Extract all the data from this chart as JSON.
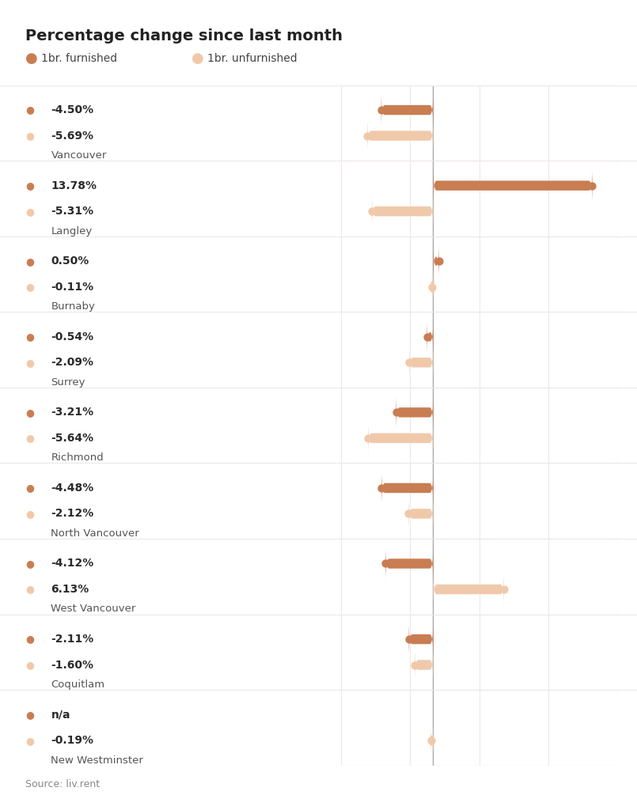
{
  "title": "Percentage change since last month",
  "legend": [
    {
      "label": "1br. furnished",
      "color": "#c97d52"
    },
    {
      "label": "1br. unfurnished",
      "color": "#f0c9aa"
    }
  ],
  "cities": [
    {
      "name": "Vancouver",
      "furnished": -4.5,
      "unfurnished": -5.69,
      "furnished_label": "-4.50%",
      "unfurnished_label": "-5.69%"
    },
    {
      "name": "Langley",
      "furnished": 13.78,
      "unfurnished": -5.31,
      "furnished_label": "13.78%",
      "unfurnished_label": "-5.31%"
    },
    {
      "name": "Burnaby",
      "furnished": 0.5,
      "unfurnished": -0.11,
      "furnished_label": "0.50%",
      "unfurnished_label": "-0.11%"
    },
    {
      "name": "Surrey",
      "furnished": -0.54,
      "unfurnished": -2.09,
      "furnished_label": "-0.54%",
      "unfurnished_label": "-2.09%"
    },
    {
      "name": "Richmond",
      "furnished": -3.21,
      "unfurnished": -5.64,
      "furnished_label": "-3.21%",
      "unfurnished_label": "-5.64%"
    },
    {
      "name": "North Vancouver",
      "furnished": -4.48,
      "unfurnished": -2.12,
      "furnished_label": "-4.48%",
      "unfurnished_label": "-2.12%"
    },
    {
      "name": "West Vancouver",
      "furnished": -4.12,
      "unfurnished": 6.13,
      "furnished_label": "-4.12%",
      "unfurnished_label": "6.13%"
    },
    {
      "name": "Coquitlam",
      "furnished": -2.11,
      "unfurnished": -1.6,
      "furnished_label": "-2.11%",
      "unfurnished_label": "-1.60%"
    },
    {
      "name": "New Westminster",
      "furnished": null,
      "unfurnished": -0.19,
      "furnished_label": "n/a",
      "unfurnished_label": "-0.19%"
    }
  ],
  "source": "Source: liv.rent",
  "background_color": "#ffffff",
  "bar_color_furnished": "#c97d52",
  "bar_color_unfurnished": "#f0c9aa",
  "xlim": [
    -8,
    16
  ],
  "grid_color": "#ede8e8",
  "axis_line_color": "#aaaaaa",
  "text_bold_color": "#2a2a2a",
  "text_city_color": "#555555",
  "label_text_color": "#333333"
}
